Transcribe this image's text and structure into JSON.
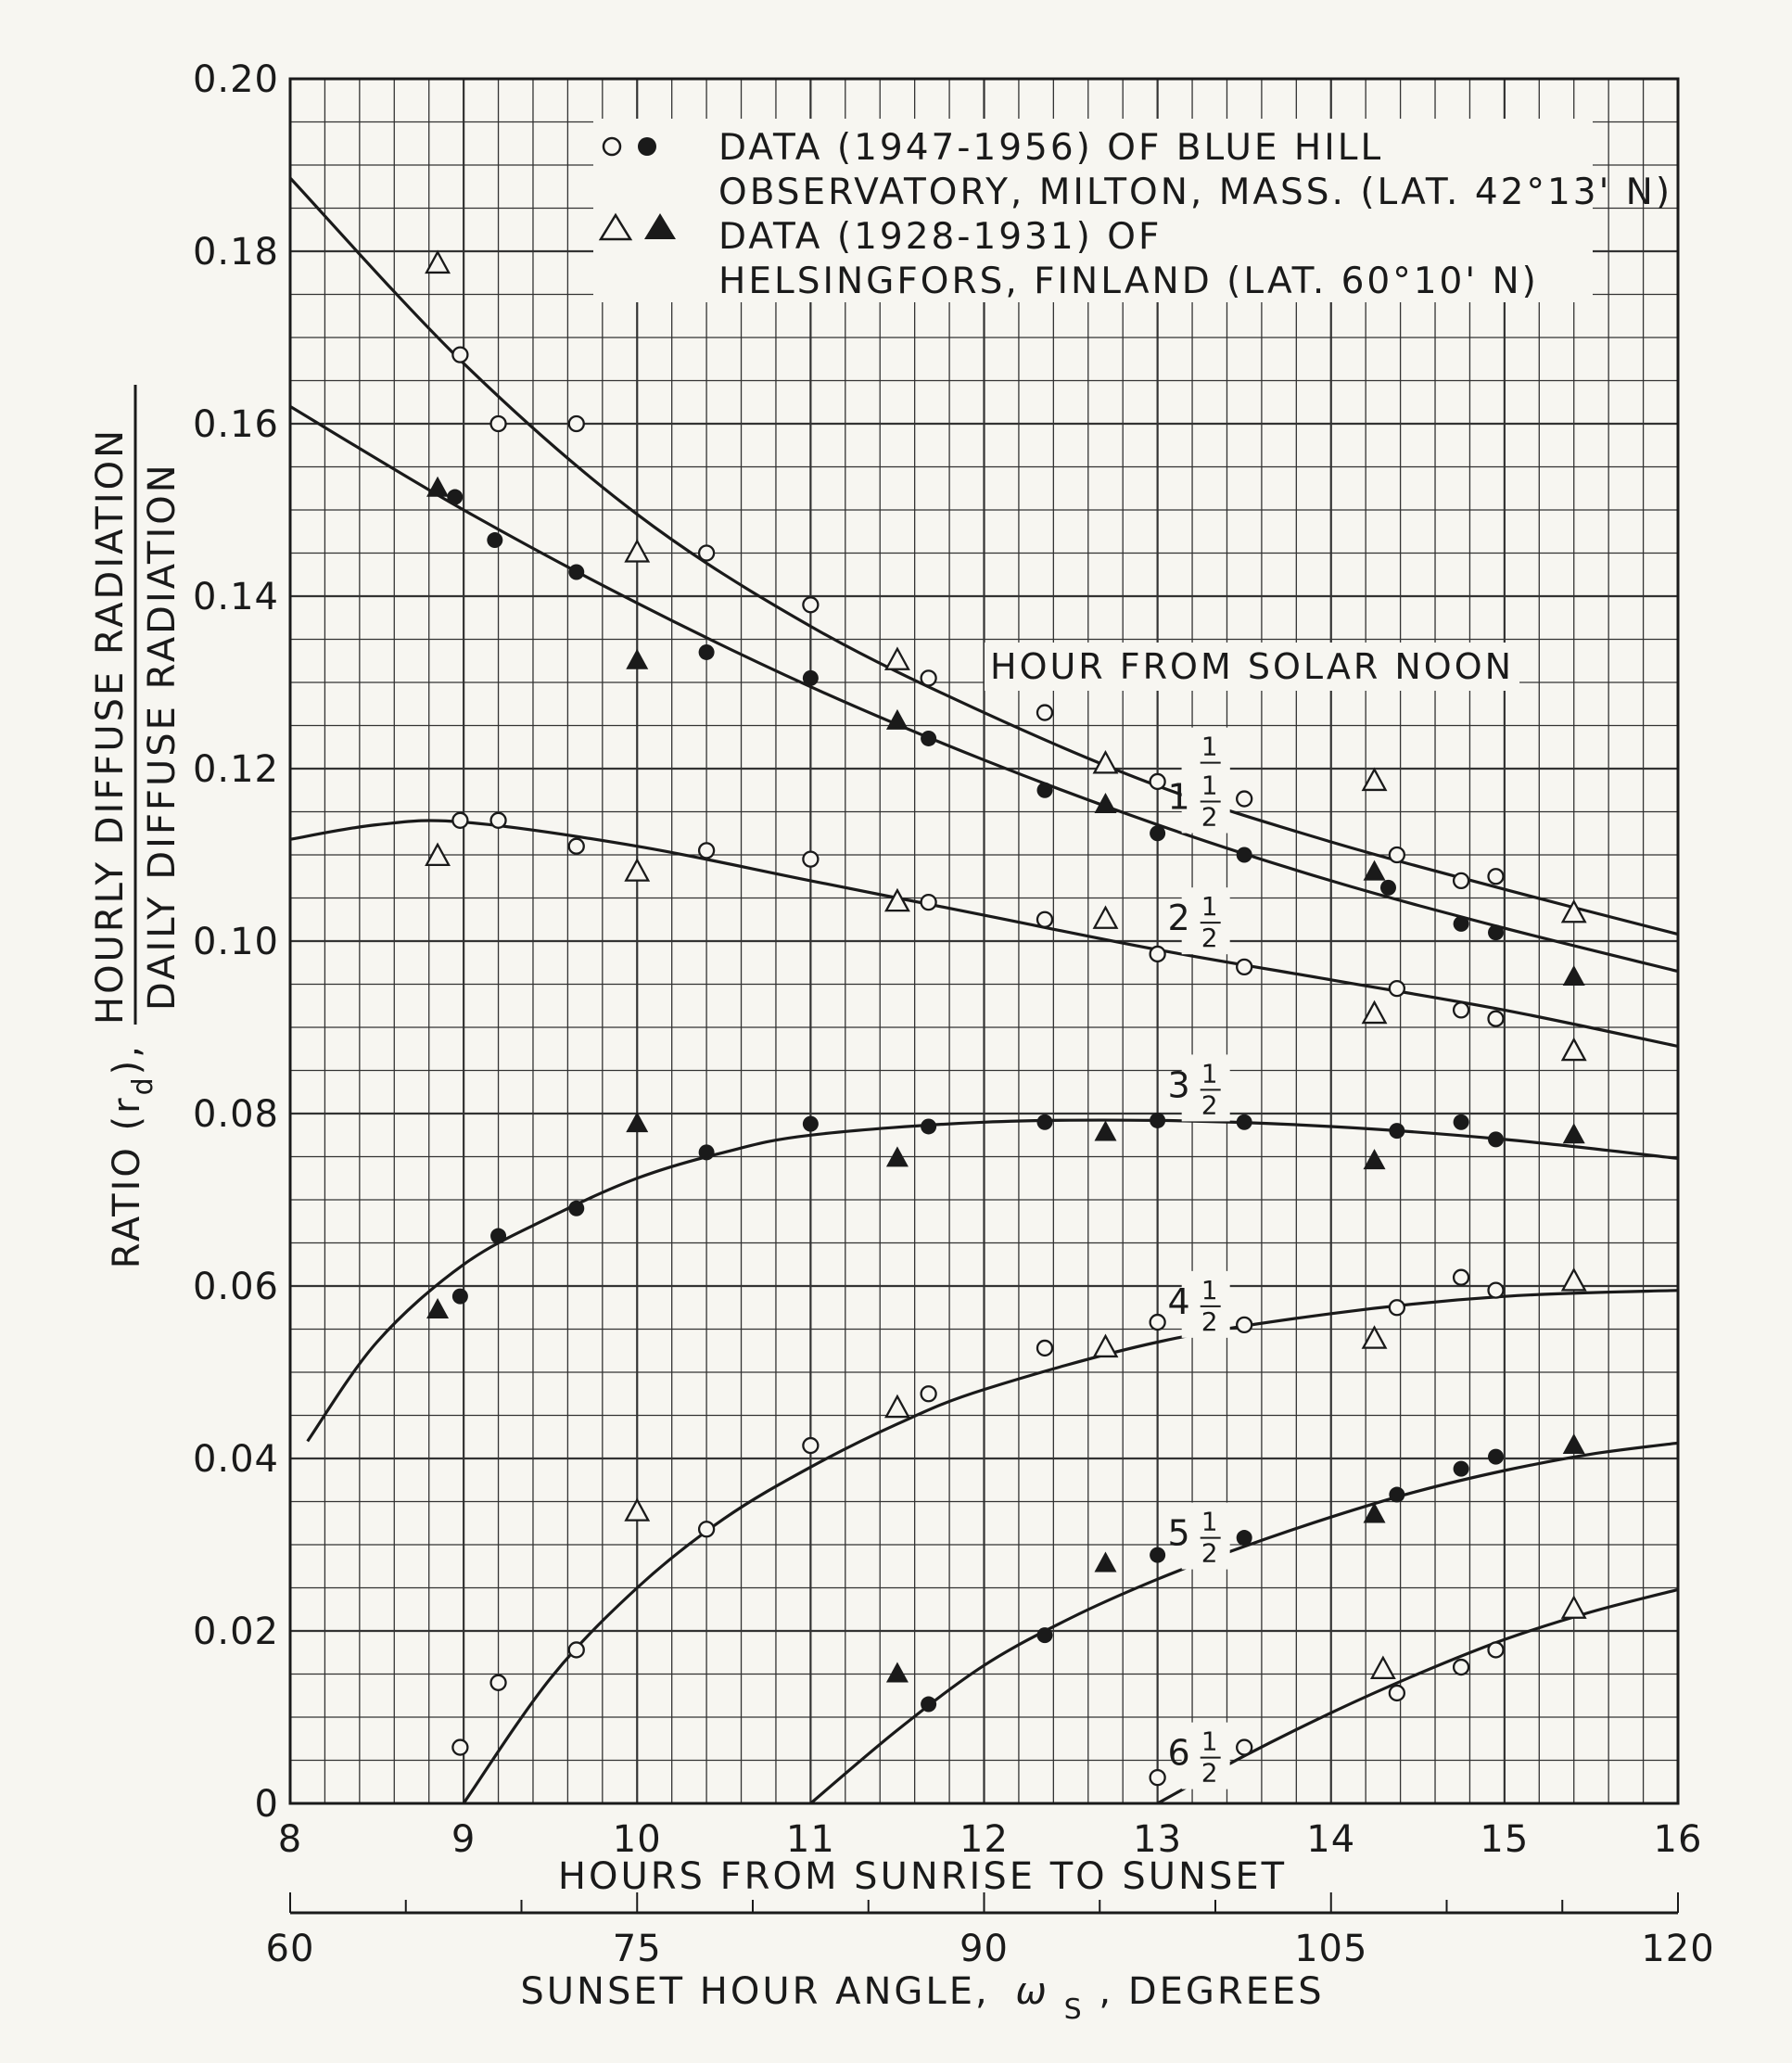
{
  "chart_data": {
    "type": "scatter",
    "title": "",
    "xlabel": "HOURS FROM SUNRISE TO SUNSET",
    "ylabel_prefix": "RATIO (r",
    "ylabel_sub": "d",
    "ylabel_suffix": "),",
    "ylabel_numerator": "HOURLY DIFFUSE RADIATION",
    "ylabel_denominator": "DAILY DIFFUSE RADIATION",
    "x2label_text": "SUNSET HOUR ANGLE,",
    "x2label_symbol": "ω",
    "x2label_sub": "S",
    "x2label_suffix": ", DEGREES",
    "xlim": [
      8,
      16
    ],
    "ylim": [
      0,
      0.2
    ],
    "x2lim": [
      60,
      120
    ],
    "grid": true,
    "legend_placement": "top-center",
    "x_ticks": [
      "8",
      "9",
      "10",
      "11",
      "12",
      "13",
      "14",
      "15",
      "16"
    ],
    "y_ticks": [
      "0",
      "0.02",
      "0.04",
      "0.06",
      "0.08",
      "0.10",
      "0.12",
      "0.14",
      "0.16",
      "0.18",
      "0.20"
    ],
    "x2_ticks": [
      "60",
      "75",
      "90",
      "105",
      "120"
    ],
    "legend": {
      "line1": "DATA (1947-1956) OF BLUE HILL",
      "line2": "OBSERVATORY, MILTON, MASS. (LAT. 42°13' N)",
      "line3": "DATA (1928-1931) OF",
      "line4": "HELSINGFORS, FINLAND (LAT. 60°10' N)"
    },
    "curve_header": "HOUR FROM SOLAR NOON",
    "curves": [
      {
        "whole": "",
        "frac_num": "1",
        "frac_den": "2",
        "points": [
          [
            8,
            0.1885
          ],
          [
            9,
            0.167
          ],
          [
            10,
            0.1495
          ],
          [
            11,
            0.1365
          ],
          [
            12,
            0.1265
          ],
          [
            13,
            0.118
          ],
          [
            14,
            0.1115
          ],
          [
            15,
            0.106
          ],
          [
            16,
            0.1008
          ]
        ]
      },
      {
        "whole": "1",
        "frac_num": "1",
        "frac_den": "2",
        "points": [
          [
            8,
            0.162
          ],
          [
            9,
            0.15
          ],
          [
            10,
            0.1392
          ],
          [
            11,
            0.1295
          ],
          [
            12,
            0.121
          ],
          [
            13,
            0.1135
          ],
          [
            14,
            0.107
          ],
          [
            15,
            0.1015
          ],
          [
            16,
            0.0965
          ]
        ]
      },
      {
        "whole": "2",
        "frac_num": "1",
        "frac_den": "2",
        "points": [
          [
            8,
            0.1118
          ],
          [
            8.5,
            0.1135
          ],
          [
            9,
            0.1138
          ],
          [
            10,
            0.111
          ],
          [
            11,
            0.107
          ],
          [
            12,
            0.103
          ],
          [
            13,
            0.099
          ],
          [
            14,
            0.0955
          ],
          [
            15,
            0.092
          ],
          [
            16,
            0.0878
          ]
        ]
      },
      {
        "whole": "3",
        "frac_num": "1",
        "frac_den": "2",
        "points": [
          [
            8.1,
            0.042
          ],
          [
            8.5,
            0.0535
          ],
          [
            9,
            0.0625
          ],
          [
            9.5,
            0.068
          ],
          [
            10,
            0.0725
          ],
          [
            10.5,
            0.0755
          ],
          [
            11,
            0.0775
          ],
          [
            12,
            0.079
          ],
          [
            13,
            0.0792
          ],
          [
            14,
            0.0785
          ],
          [
            15,
            0.077
          ],
          [
            16,
            0.0748
          ]
        ]
      },
      {
        "whole": "4",
        "frac_num": "1",
        "frac_den": "2",
        "points": [
          [
            9,
            0
          ],
          [
            9.5,
            0.0145
          ],
          [
            10,
            0.025
          ],
          [
            10.5,
            0.033
          ],
          [
            11,
            0.039
          ],
          [
            11.5,
            0.044
          ],
          [
            12,
            0.048
          ],
          [
            13,
            0.0535
          ],
          [
            14,
            0.0568
          ],
          [
            15,
            0.0588
          ],
          [
            16,
            0.0595
          ]
        ]
      },
      {
        "whole": "5",
        "frac_num": "1",
        "frac_den": "2",
        "points": [
          [
            11,
            0
          ],
          [
            11.5,
            0.0085
          ],
          [
            12,
            0.016
          ],
          [
            12.5,
            0.0215
          ],
          [
            13,
            0.026
          ],
          [
            13.5,
            0.0298
          ],
          [
            14,
            0.0332
          ],
          [
            14.5,
            0.0362
          ],
          [
            15,
            0.0386
          ],
          [
            15.5,
            0.0405
          ],
          [
            16,
            0.0418
          ]
        ]
      },
      {
        "whole": "6",
        "frac_num": "1",
        "frac_den": "2",
        "points": [
          [
            13,
            0
          ],
          [
            13.5,
            0.0055
          ],
          [
            14,
            0.0105
          ],
          [
            14.5,
            0.015
          ],
          [
            15,
            0.019
          ],
          [
            15.5,
            0.0222
          ],
          [
            16,
            0.0248
          ]
        ]
      }
    ],
    "series": [
      {
        "symbol": "open-circle",
        "source": "Blue Hill",
        "points": [
          [
            8.98,
            0.0065
          ],
          [
            9.2,
            0.014
          ],
          [
            9.65,
            0.0178
          ],
          [
            10.4,
            0.0318
          ],
          [
            11,
            0.0415
          ],
          [
            11.68,
            0.0475
          ],
          [
            12.35,
            0.0528
          ],
          [
            13,
            0.0558
          ],
          [
            13.5,
            0.0555
          ],
          [
            14.38,
            0.0575
          ],
          [
            14.75,
            0.061
          ],
          [
            14.95,
            0.0595
          ],
          [
            13,
            0.003
          ],
          [
            13.5,
            0.0065
          ],
          [
            14.38,
            0.0128
          ],
          [
            14.75,
            0.0158
          ],
          [
            14.95,
            0.0178
          ],
          [
            8.98,
            0.114
          ],
          [
            9.2,
            0.114
          ],
          [
            9.65,
            0.111
          ],
          [
            10.4,
            0.1105
          ],
          [
            11,
            0.1095
          ],
          [
            11.68,
            0.1045
          ],
          [
            12.35,
            0.1025
          ],
          [
            13,
            0.0985
          ],
          [
            13.5,
            0.097
          ],
          [
            14.38,
            0.0945
          ],
          [
            14.75,
            0.092
          ],
          [
            14.95,
            0.091
          ],
          [
            8.98,
            0.168
          ],
          [
            9.2,
            0.16
          ],
          [
            9.65,
            0.16
          ],
          [
            10.4,
            0.145
          ],
          [
            11,
            0.139
          ],
          [
            11.68,
            0.1305
          ],
          [
            12.35,
            0.1265
          ],
          [
            13,
            0.1185
          ],
          [
            13.5,
            0.1165
          ],
          [
            14.38,
            0.11
          ],
          [
            14.75,
            0.107
          ],
          [
            14.95,
            0.1075
          ]
        ]
      },
      {
        "symbol": "filled-circle",
        "source": "Blue Hill",
        "points": [
          [
            8.98,
            0.0588
          ],
          [
            9.2,
            0.0658
          ],
          [
            9.65,
            0.069
          ],
          [
            10.4,
            0.0755
          ],
          [
            11,
            0.0788
          ],
          [
            11.68,
            0.0785
          ],
          [
            12.35,
            0.079
          ],
          [
            13,
            0.0792
          ],
          [
            13.5,
            0.079
          ],
          [
            14.38,
            0.078
          ],
          [
            14.75,
            0.079
          ],
          [
            14.95,
            0.077
          ],
          [
            11.68,
            0.0115
          ],
          [
            12.35,
            0.0195
          ],
          [
            13,
            0.0288
          ],
          [
            13.5,
            0.0308
          ],
          [
            14.38,
            0.0358
          ],
          [
            14.75,
            0.0388
          ],
          [
            14.95,
            0.0402
          ],
          [
            8.95,
            0.1515
          ],
          [
            9.18,
            0.1465
          ],
          [
            9.65,
            0.1428
          ],
          [
            10.4,
            0.1335
          ],
          [
            11,
            0.1305
          ],
          [
            11.68,
            0.1235
          ],
          [
            12.35,
            0.1175
          ],
          [
            13,
            0.1125
          ],
          [
            13.5,
            0.11
          ],
          [
            14.33,
            0.1062
          ],
          [
            14.75,
            0.102
          ],
          [
            14.95,
            0.101
          ]
        ]
      },
      {
        "symbol": "open-triangle",
        "source": "Helsingfors",
        "points": [
          [
            8.85,
            0.1785
          ],
          [
            10,
            0.145
          ],
          [
            11.5,
            0.1325
          ],
          [
            12.7,
            0.1205
          ],
          [
            14.25,
            0.1185
          ],
          [
            15.4,
            0.1032
          ],
          [
            8.85,
            0.1098
          ],
          [
            10,
            0.108
          ],
          [
            11.5,
            0.1045
          ],
          [
            12.7,
            0.1025
          ],
          [
            14.25,
            0.0915
          ],
          [
            15.4,
            0.0872
          ],
          [
            10,
            0.0338
          ],
          [
            11.5,
            0.0458
          ],
          [
            12.7,
            0.0528
          ],
          [
            14.25,
            0.0538
          ],
          [
            15.4,
            0.0605
          ],
          [
            14.3,
            0.0155
          ],
          [
            15.4,
            0.0225
          ]
        ]
      },
      {
        "symbol": "filled-triangle",
        "source": "Helsingfors",
        "points": [
          [
            8.85,
            0.1525
          ],
          [
            10,
            0.1325
          ],
          [
            11.5,
            0.1255
          ],
          [
            12.7,
            0.1158
          ],
          [
            14.25,
            0.108
          ],
          [
            15.4,
            0.0958
          ],
          [
            8.85,
            0.0572
          ],
          [
            10,
            0.0788
          ],
          [
            11.5,
            0.0748
          ],
          [
            12.7,
            0.0778
          ],
          [
            14.25,
            0.0745
          ],
          [
            15.4,
            0.0775
          ],
          [
            11.5,
            0.015
          ],
          [
            12.7,
            0.0278
          ],
          [
            14.25,
            0.0335
          ],
          [
            15.4,
            0.0415
          ]
        ]
      }
    ]
  }
}
